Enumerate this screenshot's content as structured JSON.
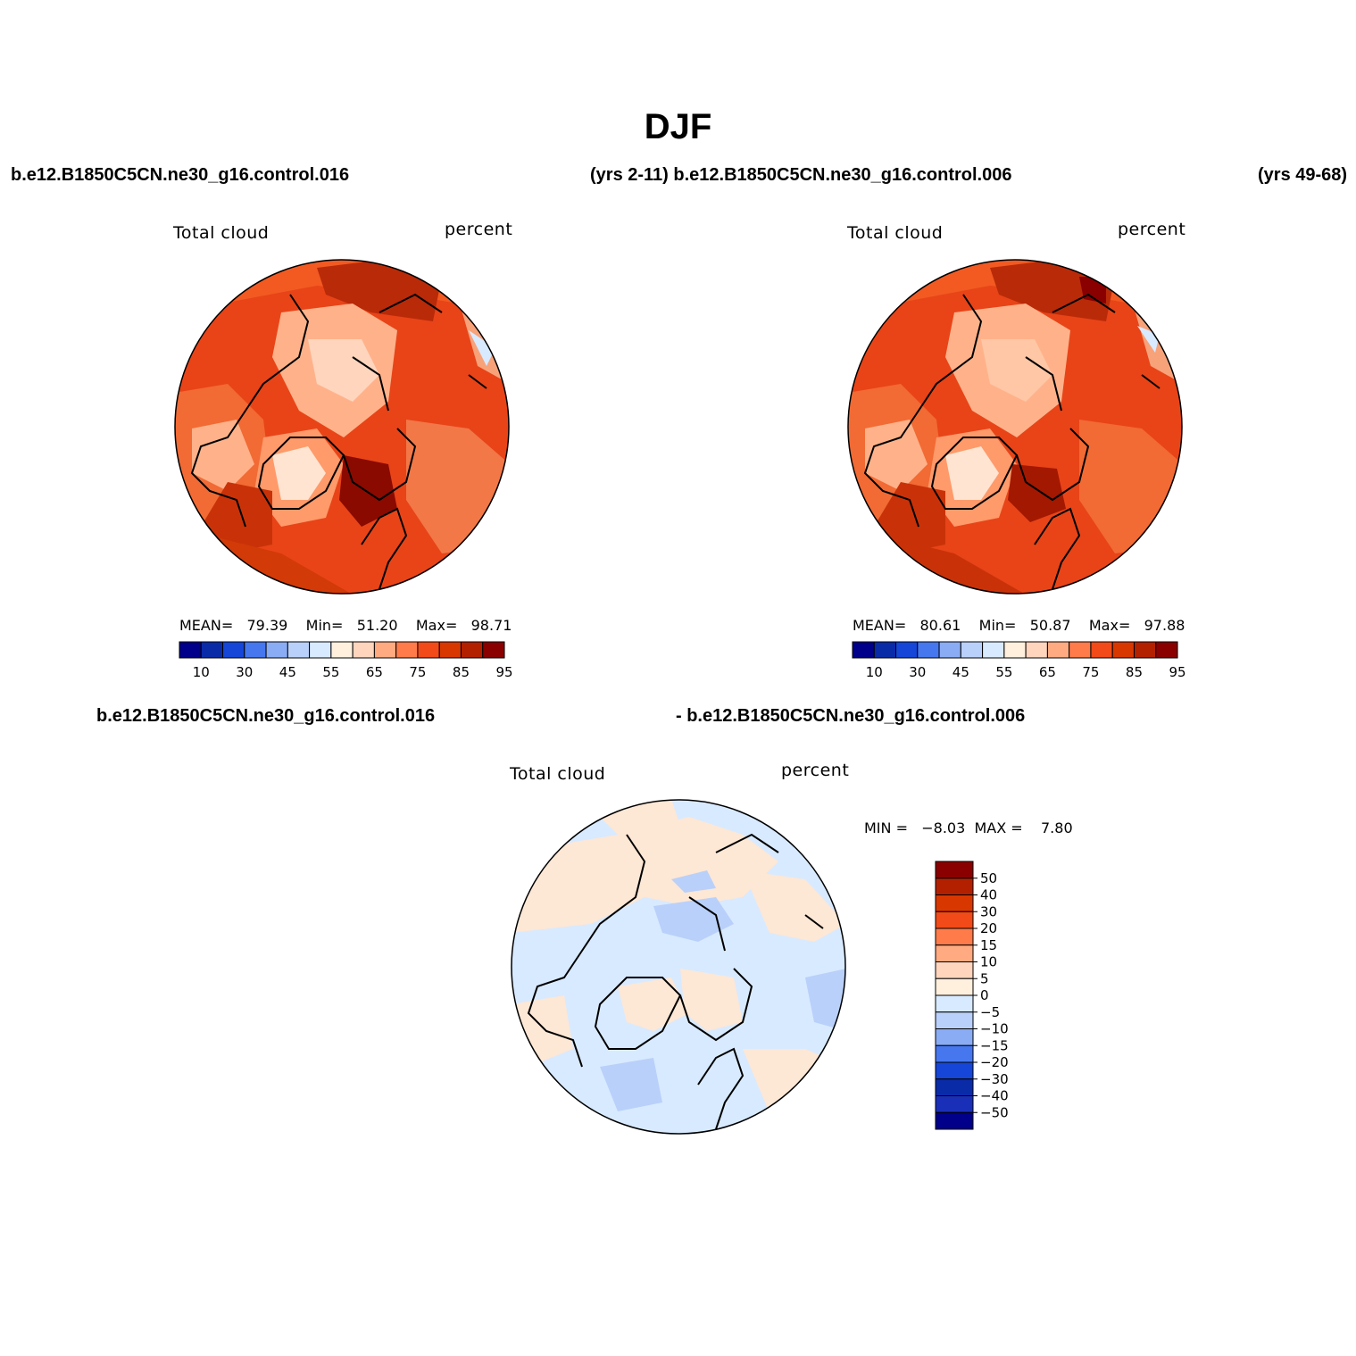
{
  "title": "DJF",
  "header": {
    "case1_name": "b.e12.B1850C5CN.ne30_g16.control.016",
    "case1_years_and_case2_name": "(yrs 2-11) b.e12.B1850C5CN.ne30_g16.control.006",
    "case2_years": "(yrs 49-68)"
  },
  "diff_header": {
    "left": "b.e12.B1850C5CN.ne30_g16.control.016",
    "right": "- b.e12.B1850C5CN.ne30_g16.control.006"
  },
  "panels": [
    {
      "variable": "Total cloud",
      "units": "percent",
      "mean_label": "MEAN=",
      "mean": "79.39",
      "min_label": "Min=",
      "min": "51.20",
      "max_label": "Max=",
      "max": "98.71"
    },
    {
      "variable": "Total cloud",
      "units": "percent",
      "mean_label": "MEAN=",
      "mean": "80.61",
      "min_label": "Min=",
      "min": "50.87",
      "max_label": "Max=",
      "max": "97.88"
    }
  ],
  "diff_panel": {
    "variable": "Total cloud",
    "units": "percent",
    "minmax_text": "MIN =   −8.03  MAX =    7.80"
  },
  "colorbar_abs": {
    "colors": [
      "#00008a",
      "#0a2ba8",
      "#1546d8",
      "#4677ef",
      "#8aacf5",
      "#b9d0fa",
      "#d8eaff",
      "#fff0de",
      "#ffd5bd",
      "#ffaa80",
      "#ff7b4a",
      "#f24a18",
      "#d83800",
      "#b32000",
      "#8a0000"
    ],
    "tick_labels": [
      "10",
      "30",
      "45",
      "55",
      "65",
      "75",
      "85",
      "95"
    ]
  },
  "colorbar_diff": {
    "colors": [
      "#8a0000",
      "#b32000",
      "#d83800",
      "#f24a18",
      "#ff7b4a",
      "#ffaa80",
      "#ffd5bd",
      "#fff0de",
      "#d8eaff",
      "#b9d0fa",
      "#8aacf5",
      "#4677ef",
      "#1546d8",
      "#0a2ba8",
      "#1a2fb8",
      "#00008a"
    ],
    "tick_labels": [
      "50",
      "40",
      "30",
      "20",
      "15",
      "10",
      "5",
      "0",
      "−5",
      "−10",
      "−15",
      "−20",
      "−30",
      "−40",
      "−50"
    ]
  }
}
